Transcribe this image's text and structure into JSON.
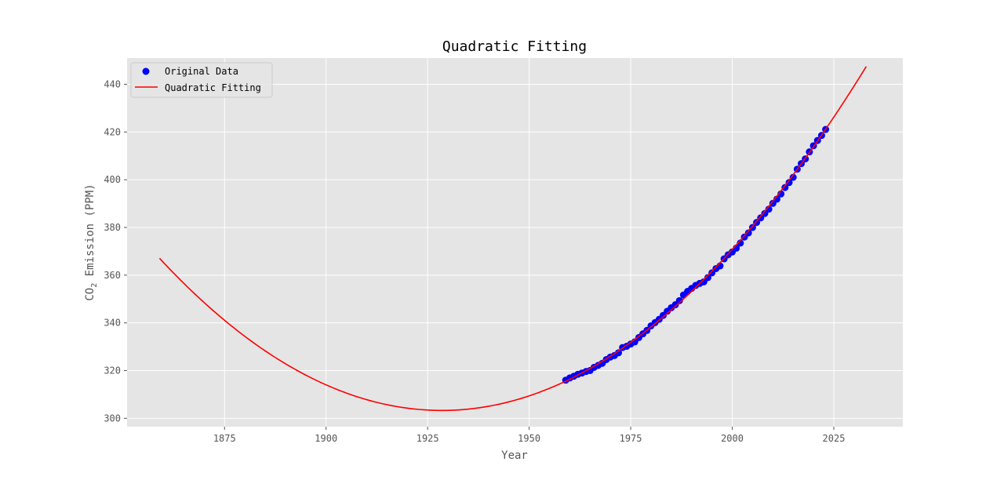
{
  "chart_data": {
    "type": "scatter",
    "title": "Quadratic Fitting",
    "xlabel": "Year",
    "ylabel_main": "CO",
    "ylabel_sub": "2",
    "ylabel_rest": " Emission (PPM)",
    "xlim": [
      1851,
      2042
    ],
    "ylim": [
      296.5,
      451
    ],
    "x_ticks": [
      1875,
      1900,
      1925,
      1950,
      1975,
      2000,
      2025
    ],
    "y_ticks": [
      300,
      320,
      340,
      360,
      380,
      400,
      420,
      440
    ],
    "grid": true,
    "legend_position": "top-left",
    "colors": {
      "background": "#e5e5e5",
      "grid": "#ffffff",
      "points": "#0000ff",
      "fit": "#ff0000"
    },
    "series": [
      {
        "name": "Original Data",
        "kind": "scatter",
        "x": [
          1959,
          1960,
          1961,
          1962,
          1963,
          1964,
          1965,
          1966,
          1967,
          1968,
          1969,
          1970,
          1971,
          1972,
          1973,
          1974,
          1975,
          1976,
          1977,
          1978,
          1979,
          1980,
          1981,
          1982,
          1983,
          1984,
          1985,
          1986,
          1987,
          1988,
          1989,
          1990,
          1991,
          1992,
          1993,
          1994,
          1995,
          1996,
          1997,
          1998,
          1999,
          2000,
          2001,
          2002,
          2003,
          2004,
          2005,
          2006,
          2007,
          2008,
          2009,
          2010,
          2011,
          2012,
          2013,
          2014,
          2015,
          2016,
          2017,
          2018,
          2019,
          2020,
          2021,
          2022,
          2023
        ],
        "y": [
          315.98,
          316.91,
          317.64,
          318.45,
          318.99,
          319.62,
          320.04,
          321.37,
          322.18,
          323.05,
          324.62,
          325.68,
          326.32,
          327.46,
          329.68,
          330.19,
          331.12,
          332.03,
          333.84,
          335.41,
          336.84,
          338.76,
          340.12,
          341.48,
          343.15,
          344.87,
          346.35,
          347.61,
          349.31,
          351.69,
          353.2,
          354.45,
          355.7,
          356.54,
          357.21,
          358.96,
          360.97,
          362.74,
          363.88,
          366.84,
          368.54,
          369.71,
          371.32,
          373.45,
          375.98,
          377.7,
          379.98,
          382.09,
          384.02,
          385.83,
          387.64,
          390.1,
          391.85,
          394.06,
          396.74,
          398.81,
          401.01,
          404.41,
          406.76,
          408.72,
          411.66,
          414.24,
          416.45,
          418.56,
          421.08
        ]
      },
      {
        "name": "Quadratic Fitting",
        "kind": "line",
        "x_range": [
          1859,
          2033
        ],
        "vertex_x": 1928.5,
        "vertex_y": 303.3,
        "coefficient": 0.0132
      }
    ]
  }
}
